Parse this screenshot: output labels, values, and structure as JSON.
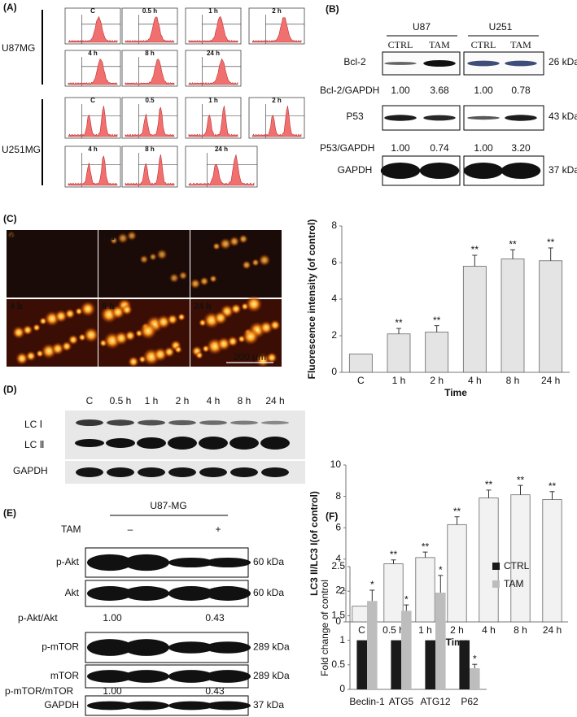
{
  "panels": {
    "a": {
      "label": "(A)",
      "rows": [
        "U87MG",
        "U251MG"
      ],
      "u87_titles": [
        "C",
        "0.5 h",
        "1 h",
        "2 h",
        "4 h",
        "8 h",
        "24 h"
      ],
      "u251_titles": [
        "C",
        "0.5",
        "1 h",
        "2 h",
        "4 h",
        "8 h",
        "24 h"
      ]
    },
    "b": {
      "label": "(B)",
      "cells": [
        "U87",
        "U251"
      ],
      "lanes": [
        "CTRL",
        "TAM",
        "CTRL",
        "TAM"
      ],
      "blots": [
        {
          "name": "Bcl-2",
          "size": "26 kDa"
        },
        {
          "name": "P53",
          "size": "43 kDa"
        },
        {
          "name": "GAPDH",
          "size": "37 kDa"
        }
      ],
      "ratios": [
        {
          "name": "Bcl-2/GAPDH",
          "values": [
            "1.00",
            "3.68",
            "1.00",
            "0.78"
          ]
        },
        {
          "name": "P53/GAPDH",
          "values": [
            "1.00",
            "0.74",
            "1.00",
            "3.20"
          ]
        }
      ]
    },
    "c": {
      "label": "(C)",
      "images": [
        "C",
        "1 h",
        "2 h",
        "4 h",
        "8 h",
        "24 h"
      ],
      "scale_bar": "200 μm"
    },
    "d": {
      "label": "(D)",
      "lanes": [
        "C",
        "0.5 h",
        "1 h",
        "2 h",
        "4 h",
        "8 h",
        "24 h"
      ],
      "bands": [
        "LC Ⅰ",
        "LC Ⅱ",
        "GAPDH"
      ]
    },
    "e": {
      "label": "(E)",
      "cell": "U87-MG",
      "treatment": "TAM",
      "lanes": [
        "–",
        "+"
      ],
      "blots": [
        {
          "name": "p-Akt",
          "size": "60 kDa"
        },
        {
          "name": "Akt",
          "size": "60 kDa"
        },
        {
          "name": "p-mTOR",
          "size": "289 kDa"
        },
        {
          "name": "mTOR",
          "size": "289 kDa"
        },
        {
          "name": "GAPDH",
          "size": "37 kDa"
        }
      ],
      "ratios": [
        {
          "name": "p-Akt/Akt",
          "values": [
            "1.00",
            "0.43"
          ]
        },
        {
          "name": "p-mTOR/mTOR",
          "values": [
            "1.00",
            "0.43"
          ]
        }
      ]
    },
    "f": {
      "label": "(F)"
    }
  },
  "chart_data": [
    {
      "type": "bar",
      "y_label": "Fluorescence intensity (of control)",
      "x_label": "Time",
      "categories": [
        "C",
        "1 h",
        "2 h",
        "4 h",
        "8 h",
        "24 h"
      ],
      "values": [
        1,
        2.1,
        2.2,
        5.8,
        6.2,
        6.1
      ],
      "errors": [
        null,
        0.3,
        0.35,
        0.6,
        0.5,
        0.7
      ],
      "significance": [
        null,
        "**",
        "**",
        "**",
        "**",
        "**"
      ],
      "color": "#e4e4e4",
      "ylim": [
        0,
        8
      ],
      "yticks": [
        0,
        2,
        4,
        6,
        8
      ],
      "grid": false
    },
    {
      "type": "bar",
      "y_label": "LC3 II/LC3 I(of control)",
      "x_label": "Time",
      "categories": [
        "C",
        "0.5 h",
        "1 h",
        "2 h",
        "4 h",
        "8 h",
        "24 h"
      ],
      "values": [
        1,
        3.7,
        4.1,
        6.2,
        7.9,
        8.1,
        7.8
      ],
      "errors": [
        null,
        0.25,
        0.35,
        0.5,
        0.5,
        0.6,
        0.5
      ],
      "significance": [
        null,
        "**",
        "**",
        "**",
        "**",
        "**",
        "**"
      ],
      "color": "#f2f2f2",
      "ylim": [
        0,
        10
      ],
      "yticks": [
        0,
        2,
        4,
        6,
        8,
        10
      ],
      "grid": false
    },
    {
      "type": "bar",
      "y_label": "Fold change of control",
      "categories": [
        "Beclin-1",
        "ATG5",
        "ATG12",
        "P62"
      ],
      "series": [
        {
          "name": "CTRL",
          "color": "#1a1a1a",
          "values": [
            1,
            1,
            1,
            1
          ]
        },
        {
          "name": "TAM",
          "color": "#bdbdbd",
          "values": [
            1.8,
            1.6,
            1.97,
            0.43
          ],
          "errors": [
            0.22,
            0.12,
            0.35,
            0.08
          ],
          "significance": [
            "*",
            "*",
            "*",
            "*"
          ]
        }
      ],
      "ylim": [
        0,
        2.5
      ],
      "yticks": [
        0,
        0.5,
        1,
        1.5,
        2,
        2.5
      ],
      "grid": false,
      "legend": "right"
    }
  ]
}
